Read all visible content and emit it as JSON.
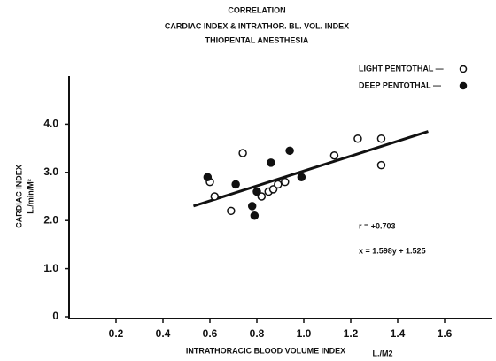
{
  "chart_data": {
    "type": "scatter",
    "title": [
      "CORRELATION",
      "CARDIAC INDEX & INTRATHOR. BL. VOL. INDEX",
      "THIOPENTAL ANESTHESIA"
    ],
    "y_label": [
      "CARDIAC INDEX",
      "L./min/M²"
    ],
    "x_label": "INTRATHORACIC BLOOD VOLUME INDEX",
    "x_unit": "L./M2",
    "annotations": [
      "r = +0.703",
      "x = 1.598y + 1.525"
    ],
    "xlim": [
      0,
      1.8
    ],
    "ylim": [
      0,
      5
    ],
    "xticks": [
      0.2,
      0.4,
      0.6,
      0.8,
      {
        "value": 1,
        "label": "1.0"
      },
      1.2,
      1.4,
      1.6
    ],
    "yticks": [
      0,
      {
        "value": 1,
        "label": "1.0"
      },
      {
        "value": 2,
        "label": "2.0"
      },
      {
        "value": 3,
        "label": "3.0"
      },
      {
        "value": 4,
        "label": "4.0"
      }
    ],
    "series": [
      {
        "name": "LIGHT PENTOTHAL —",
        "color": "#111",
        "filled": false,
        "x": [
          0.6,
          0.62,
          0.69,
          0.74,
          0.82,
          0.85,
          0.87,
          0.89,
          0.92,
          1.13,
          1.23,
          1.33,
          1.33
        ],
        "values": [
          2.8,
          2.5,
          2.2,
          3.4,
          2.5,
          2.6,
          2.65,
          2.75,
          2.8,
          3.35,
          3.7,
          3.7,
          3.15
        ]
      },
      {
        "name": "DEEP PENTOTHAL —",
        "color": "#111",
        "filled": true,
        "x": [
          0.59,
          0.71,
          0.78,
          0.79,
          0.8,
          0.86,
          0.94,
          0.99
        ],
        "values": [
          2.9,
          2.75,
          2.3,
          2.1,
          2.6,
          3.2,
          3.45,
          2.9
        ]
      }
    ],
    "regression_line": {
      "x": [
        0.53,
        1.53
      ],
      "y": [
        2.3,
        3.85
      ]
    }
  }
}
